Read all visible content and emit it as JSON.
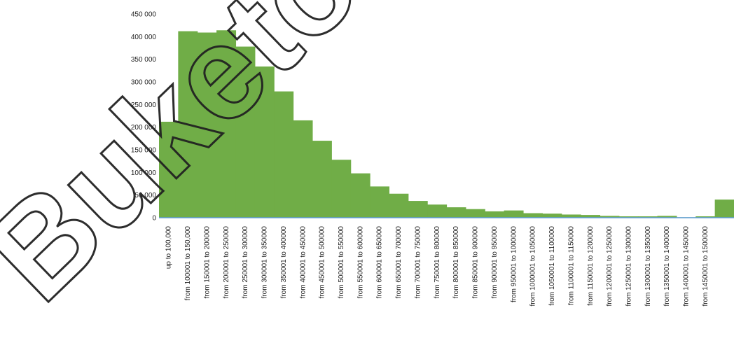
{
  "watermark": {
    "text": "Buketov"
  },
  "chart_data": {
    "type": "bar",
    "title": "",
    "xlabel": "",
    "ylabel": "",
    "ylim": [
      0,
      450000
    ],
    "yticks": [
      0,
      50000,
      100000,
      150000,
      200000,
      250000,
      300000,
      350000,
      400000,
      450000
    ],
    "ytick_labels": [
      "0",
      "50 000",
      "100 000",
      "150 000",
      "200 000",
      "250 000",
      "300 000",
      "350 000",
      "400 000",
      "450 000"
    ],
    "grid": false,
    "legend": "none",
    "colors": {
      "bar": "#70ad47",
      "axis": "#5b9bd5"
    },
    "categories": [
      "up to 100,000",
      "from 100001 to 150,000",
      "from 150001 to 200000",
      "from 200001 to 250000",
      "from 250001 to 300000",
      "from 300001 to 350000",
      "from 350001 to 400000",
      "from 400001 to 450000",
      "from 450001 to 500000",
      "from 500001 to 550000",
      "from 550001 to 600000",
      "from 600001 to 650000",
      "from 650001 to 700000",
      "from 700001 to 750000",
      "from 750001 to 800000",
      "from 800001 to 850000",
      "from 850001 to 900000",
      "from 900001 to 950000",
      "from 950001 to 1000000",
      "from 1000001 to 1050000",
      "from 1050001 to 1100000",
      "from 1100001 to 1150000",
      "from 1150001 to 1200000",
      "from 1200001 to 1250000",
      "from 1250001 to 1300000",
      "from 1300001 to 1350000",
      "from 1350001 to 1400000",
      "from 1400001 to 1450000",
      "from 1450001 to 1500000",
      ""
    ],
    "values": [
      212000,
      412000,
      409000,
      414000,
      378000,
      334000,
      279000,
      215000,
      170000,
      128000,
      98000,
      69000,
      53000,
      37000,
      29000,
      23000,
      19000,
      14000,
      16000,
      10000,
      9000,
      7000,
      6000,
      4000,
      3000,
      3000,
      4000,
      1000,
      3000,
      40000
    ]
  }
}
